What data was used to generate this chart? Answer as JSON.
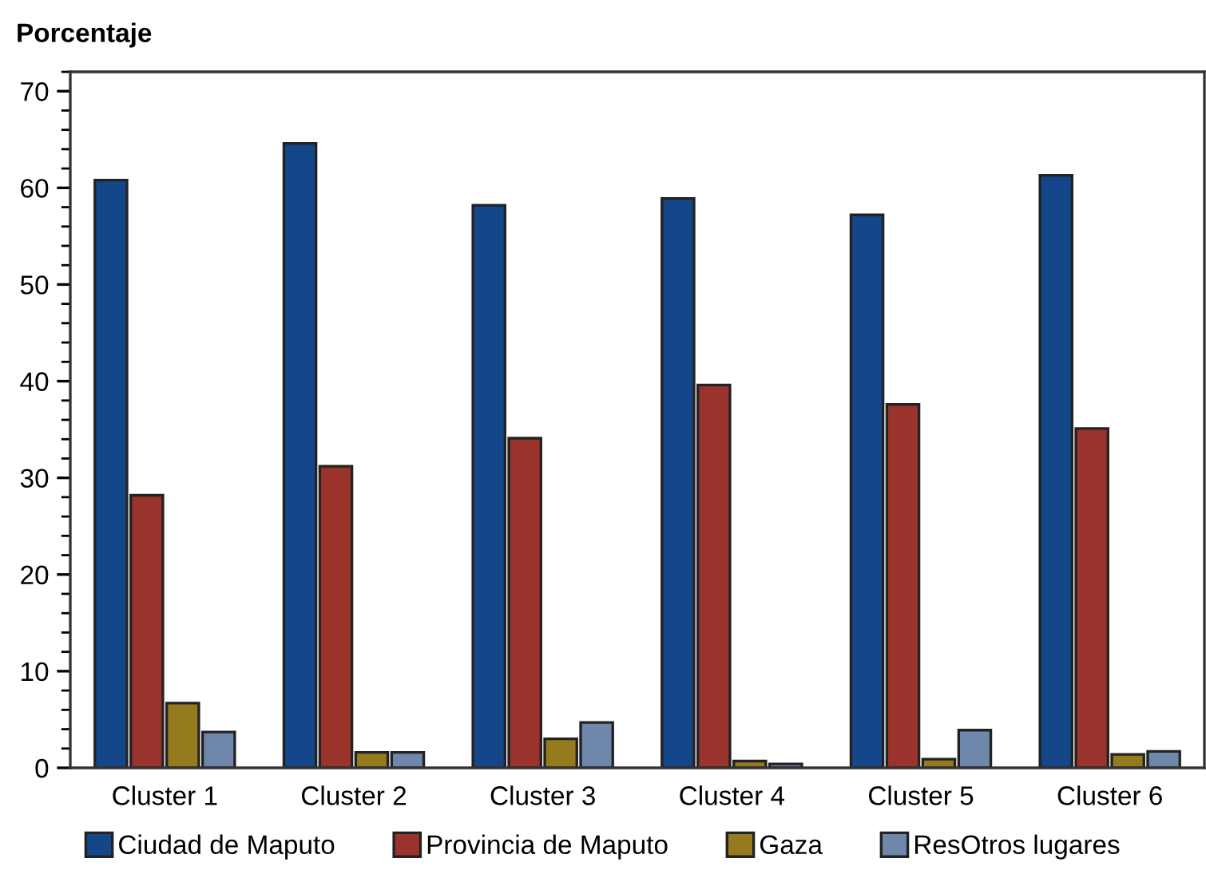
{
  "chart_data": {
    "type": "bar",
    "ylabel": "Porcentaje",
    "categories": [
      "Cluster 1",
      "Cluster 2",
      "Cluster 3",
      "Cluster 4",
      "Cluster 5",
      "Cluster 6"
    ],
    "series": [
      {
        "name": "Ciudad de Maputo",
        "color": "#14468a",
        "values": [
          60.8,
          64.6,
          58.2,
          58.9,
          57.2,
          61.3
        ]
      },
      {
        "name": "Provincia de Maputo",
        "color": "#9a332b",
        "values": [
          28.2,
          31.2,
          34.1,
          39.6,
          37.6,
          35.1
        ]
      },
      {
        "name": "Gaza",
        "color": "#967a1e",
        "values": [
          6.7,
          1.6,
          3.0,
          0.7,
          0.9,
          1.4
        ]
      },
      {
        "name": "ResOtros lugares",
        "color": "#6e87aa",
        "values": [
          3.7,
          1.6,
          4.7,
          0.4,
          3.9,
          1.7
        ]
      }
    ],
    "ylim": [
      0,
      72
    ],
    "yticks": [
      0,
      10,
      20,
      30,
      40,
      50,
      60,
      70
    ],
    "grid": false,
    "legend": "bottom"
  }
}
